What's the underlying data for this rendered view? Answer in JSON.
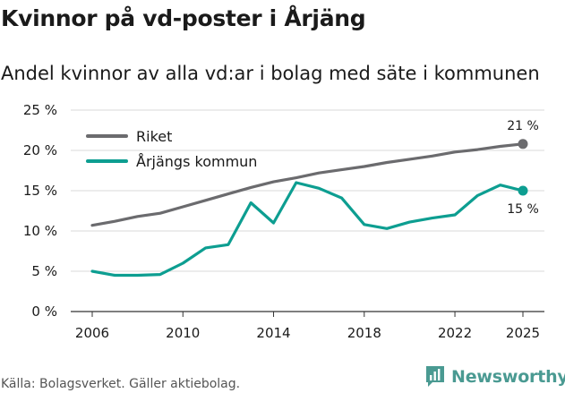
{
  "title": "Kvinnor på vd-poster i Årjäng",
  "subtitle": "Andel kvinnor av alla vd:ar i bolag med säte i kommunen",
  "source": "Källa: Bolagsverket. Gäller aktiebolag.",
  "brand": {
    "name": "Newsworthy",
    "color": "#4a9a92"
  },
  "chart_data": {
    "type": "line",
    "x": [
      2006,
      2007,
      2008,
      2009,
      2010,
      2011,
      2012,
      2013,
      2014,
      2015,
      2016,
      2017,
      2018,
      2019,
      2020,
      2021,
      2022,
      2023,
      2024,
      2025
    ],
    "series": [
      {
        "name": "Riket",
        "color": "#6b6b6e",
        "values": [
          10.7,
          11.2,
          11.8,
          12.2,
          13.0,
          13.8,
          14.6,
          15.4,
          16.1,
          16.6,
          17.2,
          17.6,
          18.0,
          18.5,
          18.9,
          19.3,
          19.8,
          20.1,
          20.5,
          20.8
        ],
        "end_label": "21 %"
      },
      {
        "name": "Årjängs kommun",
        "color": "#0d9e91",
        "values": [
          5.0,
          4.5,
          4.5,
          4.6,
          6.0,
          7.9,
          8.3,
          13.5,
          11.0,
          16.0,
          15.3,
          14.1,
          10.8,
          10.3,
          11.1,
          11.6,
          12.0,
          14.4,
          15.7,
          15.0
        ],
        "end_label": "15 %"
      }
    ],
    "xticks": [
      "2006",
      "2010",
      "2014",
      "2018",
      "2022",
      "2025"
    ],
    "xtick_values": [
      2006,
      2010,
      2014,
      2018,
      2022,
      2025
    ],
    "yticks": [
      "0 %",
      "5 %",
      "10 %",
      "15 %",
      "20 %",
      "25 %"
    ],
    "ytick_values": [
      0,
      5,
      10,
      15,
      20,
      25
    ],
    "ylim": [
      0,
      25
    ],
    "xlim": [
      2006,
      2025
    ],
    "grid": "horizontal",
    "legend_position": "top-left"
  }
}
